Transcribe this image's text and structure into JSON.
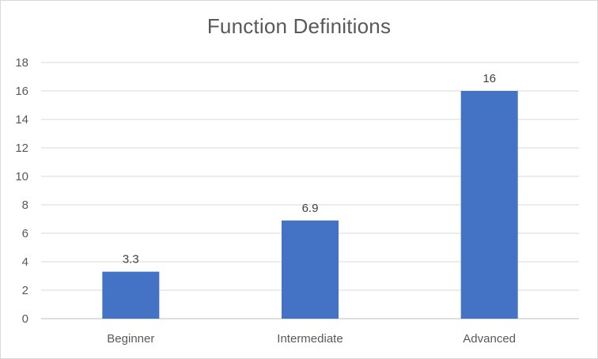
{
  "chart_data": {
    "type": "bar",
    "title": "Function Definitions",
    "categories": [
      "Beginner",
      "Intermediate",
      "Advanced"
    ],
    "values": [
      3.3,
      6.9,
      16
    ],
    "data_labels": [
      "3.3",
      "6.9",
      "16"
    ],
    "ylim": [
      0,
      18
    ],
    "yticks": [
      0,
      2,
      4,
      6,
      8,
      10,
      12,
      14,
      16,
      18
    ],
    "grid": true,
    "legend": "none",
    "colors": {
      "bar": "#4472c4",
      "grid": "#d9d9d9",
      "text": "#595959"
    }
  }
}
